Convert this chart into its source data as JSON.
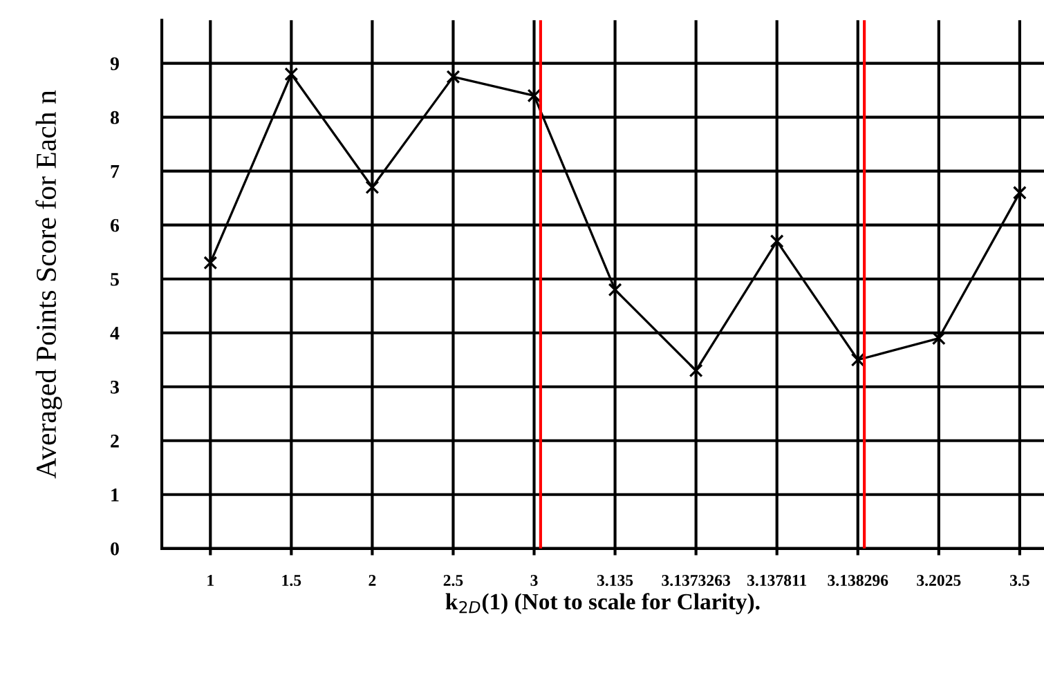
{
  "chart_data": {
    "type": "line",
    "xlabel": "k$_{2D}$(1) (Not to scale for Clarity).",
    "ylabel": "Averaged Points Score for Each n",
    "categories": [
      "1",
      "1.5",
      "2",
      "2.5",
      "3",
      "3.135",
      "3.1373263",
      "3.137811",
      "3.138296",
      "3.2025",
      "3.5"
    ],
    "series": [
      {
        "color": "#000000",
        "values": [
          5.3,
          8.8,
          6.7,
          8.75,
          8.4,
          4.8,
          3.3,
          5.7,
          3.5,
          3.9,
          6.6
        ]
      }
    ],
    "ylim": [
      0,
      9.8
    ],
    "yticks": [
      0,
      1,
      2,
      3,
      4,
      5,
      6,
      7,
      8,
      9
    ],
    "grid": true,
    "marker": "cross",
    "line_style": "solid",
    "ref_lines": [
      {
        "axis": "x",
        "value": "3",
        "color": "#ff0000"
      },
      {
        "axis": "x",
        "value": "3.138296",
        "color": "#ff0000"
      }
    ]
  }
}
